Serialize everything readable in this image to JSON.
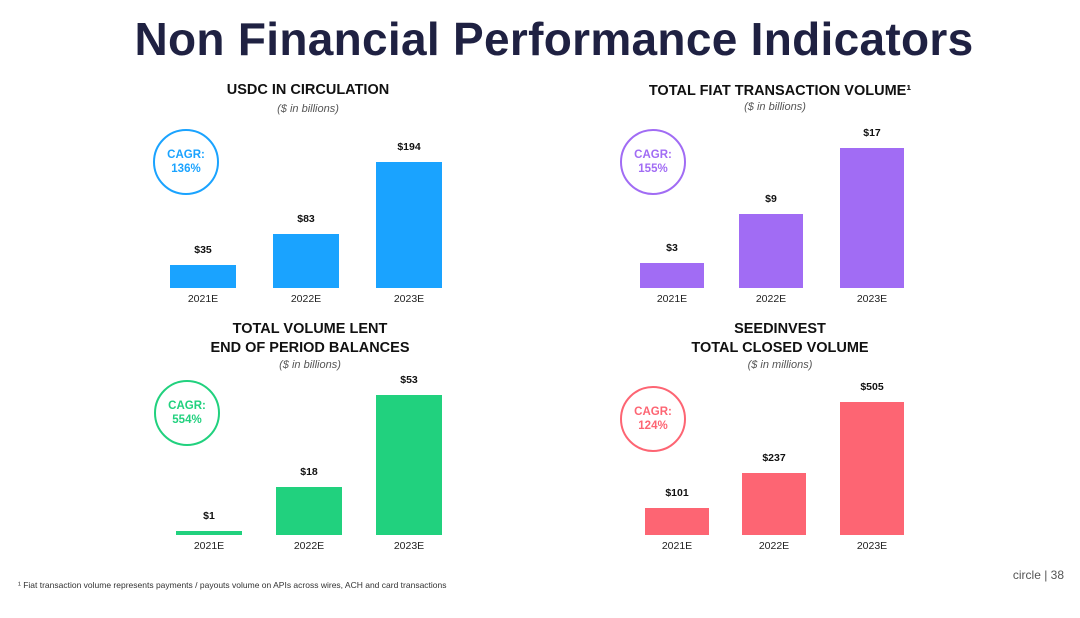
{
  "title": "Non Financial Performance Indicators",
  "colors": {
    "usdc": "#1aa3ff",
    "fiat": "#a16cf4",
    "lent": "#21d17e",
    "seed": "#fd6573"
  },
  "chart_data": [
    {
      "id": "usdc",
      "type": "bar",
      "title": "USDC IN CIRCULATION",
      "subtitle": "($ in billions)",
      "cagr_label": "CAGR:",
      "cagr_value": "136%",
      "categories": [
        "2021E",
        "2022E",
        "2023E"
      ],
      "values": [
        35,
        83,
        194
      ],
      "value_labels": [
        "$35",
        "$83",
        "$194"
      ],
      "ylim": [
        0,
        194
      ]
    },
    {
      "id": "fiat",
      "type": "bar",
      "title": "TOTAL FIAT TRANSACTION VOLUME¹",
      "subtitle": "($ in billions)",
      "cagr_label": "CAGR:",
      "cagr_value": "155%",
      "categories": [
        "2021E",
        "2022E",
        "2023E"
      ],
      "values": [
        3,
        9,
        17
      ],
      "value_labels": [
        "$3",
        "$9",
        "$17"
      ],
      "ylim": [
        0,
        17
      ]
    },
    {
      "id": "lent",
      "type": "bar",
      "title": "TOTAL VOLUME LENT\nEND OF PERIOD BALANCES",
      "subtitle": "($ in billions)",
      "cagr_label": "CAGR:",
      "cagr_value": "554%",
      "categories": [
        "2021E",
        "2022E",
        "2023E"
      ],
      "values": [
        1,
        18,
        53
      ],
      "value_labels": [
        "$1",
        "$18",
        "$53"
      ],
      "ylim": [
        0,
        53
      ]
    },
    {
      "id": "seed",
      "type": "bar",
      "title": "SEEDINVEST\nTOTAL CLOSED VOLUME",
      "subtitle": "($ in millions)",
      "cagr_label": "CAGR:",
      "cagr_value": "124%",
      "categories": [
        "2021E",
        "2022E",
        "2023E"
      ],
      "values": [
        101,
        237,
        505
      ],
      "value_labels": [
        "$101",
        "$237",
        "$505"
      ],
      "ylim": [
        0,
        505
      ]
    }
  ],
  "footnote": "¹ Fiat transaction volume represents payments / payouts volume on APIs across wires, ACH and card transactions",
  "footer_text": "circle  |  38"
}
